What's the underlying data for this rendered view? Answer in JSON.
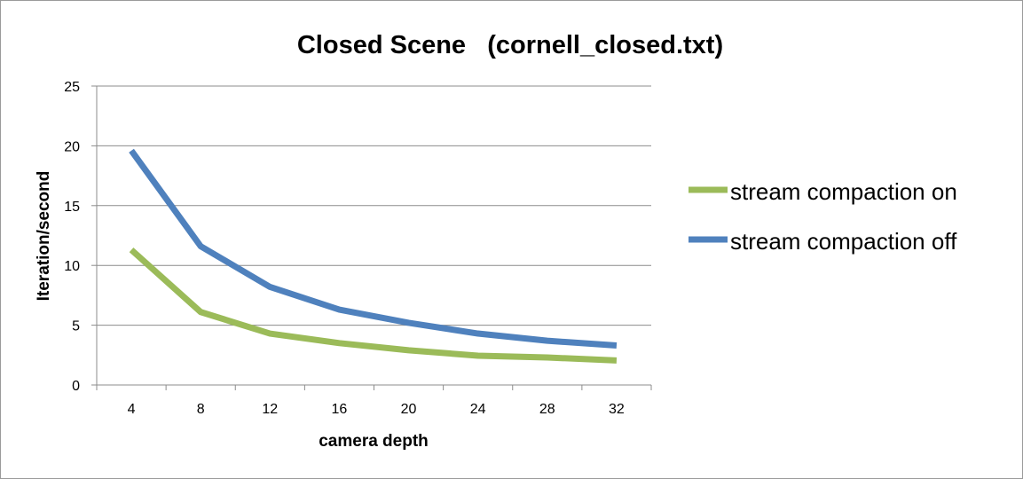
{
  "chart_data": {
    "type": "line",
    "title": "Closed Scene   (cornell_closed.txt)",
    "xlabel": "camera depth",
    "ylabel": "Iteration/second",
    "categories": [
      "4",
      "8",
      "12",
      "16",
      "20",
      "24",
      "28",
      "32"
    ],
    "ylim": [
      0,
      25
    ],
    "yticks": [
      "0",
      "5",
      "10",
      "15",
      "20",
      "25"
    ],
    "grid": "horizontal",
    "legend_position": "right",
    "series": [
      {
        "name": "stream compaction on",
        "color": "#9bbb59",
        "values": [
          11.3,
          6.1,
          4.3,
          3.5,
          2.9,
          2.45,
          2.3,
          2.05
        ]
      },
      {
        "name": "stream compaction off",
        "color": "#4f81bd",
        "values": [
          19.6,
          11.6,
          8.2,
          6.3,
          5.2,
          4.3,
          3.7,
          3.3
        ]
      }
    ]
  }
}
